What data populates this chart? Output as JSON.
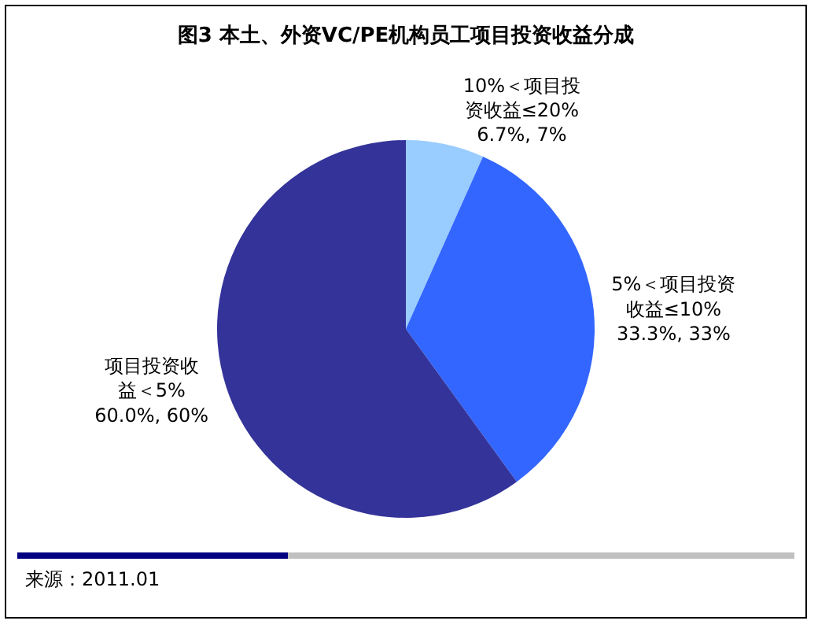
{
  "chart_data": {
    "type": "pie",
    "title": "图3 本土、外资VC/PE机构员工项目投资收益分成",
    "categories": [
      "10%＜项目投资收益≤20%",
      "5%＜项目投资收益≤10%",
      "项目投资收益＜5%"
    ],
    "values": [
      6.7,
      33.3,
      60.0
    ],
    "value_labels": [
      "6.7%, 7%",
      "33.3%, 33%",
      "60.0%, 60%"
    ],
    "colors": [
      "#99ccff",
      "#3366ff",
      "#333399"
    ],
    "legend": false,
    "annotations": [
      "来源：2011.01"
    ]
  }
}
